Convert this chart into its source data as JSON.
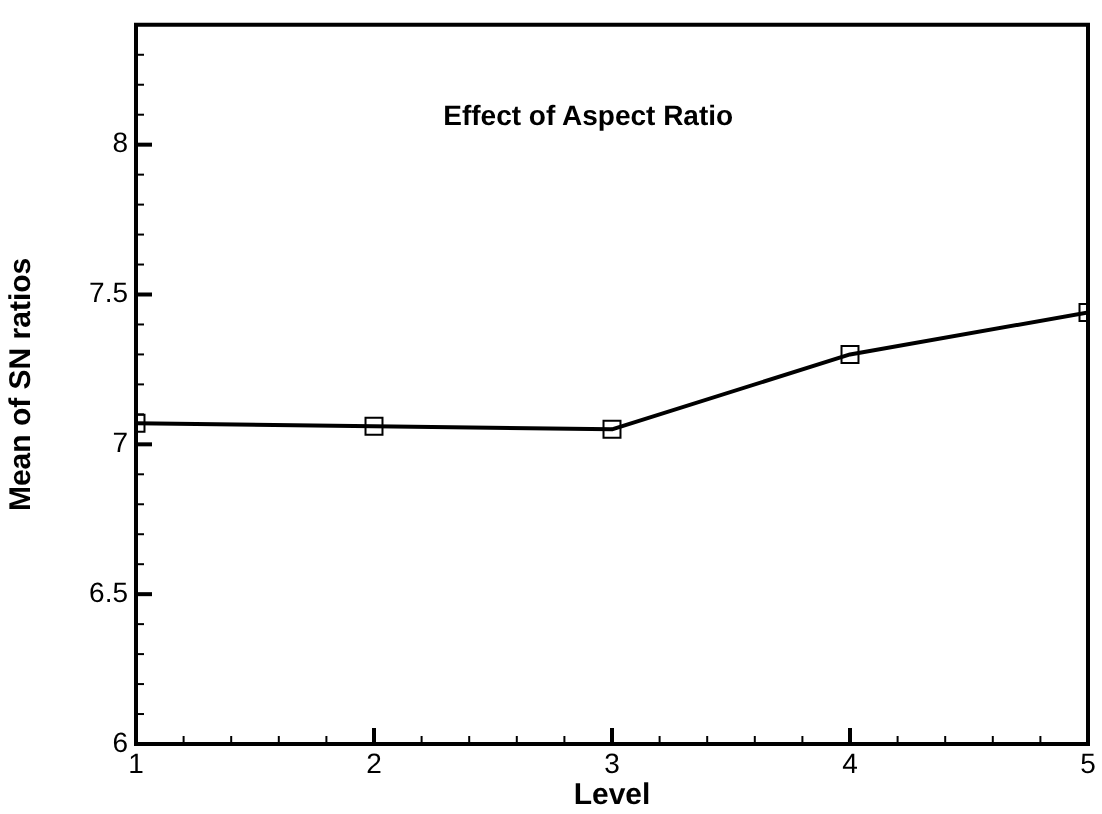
{
  "chart_data": {
    "type": "line",
    "title": "Effect of Aspect Ratio",
    "xlabel": "Level",
    "ylabel": "Mean of SN ratios",
    "x": [
      1,
      2,
      3,
      4,
      5
    ],
    "series": [
      {
        "color": "#000000",
        "values": [
          7.07,
          7.06,
          7.05,
          7.3,
          7.44
        ]
      }
    ],
    "xlim": [
      1,
      5
    ],
    "xticks": [
      1,
      {
        "value": 1.2,
        "label": null
      },
      {
        "value": 1.4,
        "label": null
      },
      {
        "value": 1.6,
        "label": null
      },
      {
        "value": 1.8,
        "label": null
      },
      2,
      {
        "value": 2.2,
        "label": null
      },
      {
        "value": 2.4,
        "label": null
      },
      {
        "value": 2.6,
        "label": null
      },
      {
        "value": 2.8,
        "label": null
      },
      3,
      {
        "value": 3.2,
        "label": null
      },
      {
        "value": 3.4,
        "label": null
      },
      {
        "value": 3.6,
        "label": null
      },
      {
        "value": 3.8,
        "label": null
      },
      4,
      {
        "value": 4.2,
        "label": null
      },
      {
        "value": 4.4,
        "label": null
      },
      {
        "value": 4.6,
        "label": null
      },
      {
        "value": 4.8,
        "label": null
      },
      5
    ],
    "ylim": [
      6,
      8.4
    ],
    "yticks": [
      6,
      {
        "value": 6.1,
        "label": null
      },
      {
        "value": 6.2,
        "label": null
      },
      {
        "value": 6.3,
        "label": null
      },
      {
        "value": 6.4,
        "label": null
      },
      6.5,
      {
        "value": 6.6,
        "label": null
      },
      {
        "value": 6.7,
        "label": null
      },
      {
        "value": 6.8,
        "label": null
      },
      {
        "value": 6.9,
        "label": null
      },
      7,
      {
        "value": 7.1,
        "label": null
      },
      {
        "value": 7.2,
        "label": null
      },
      {
        "value": 7.3,
        "label": null
      },
      {
        "value": 7.4,
        "label": null
      },
      7.5,
      {
        "value": 7.6,
        "label": null
      },
      {
        "value": 7.7,
        "label": null
      },
      {
        "value": 7.8,
        "label": null
      },
      {
        "value": 7.9,
        "label": null
      },
      8,
      {
        "value": 8.1,
        "label": null
      },
      {
        "value": 8.2,
        "label": null
      },
      {
        "value": 8.3,
        "label": null
      }
    ],
    "grid": false,
    "legend": false,
    "marker": "square",
    "line_style": "solid"
  }
}
